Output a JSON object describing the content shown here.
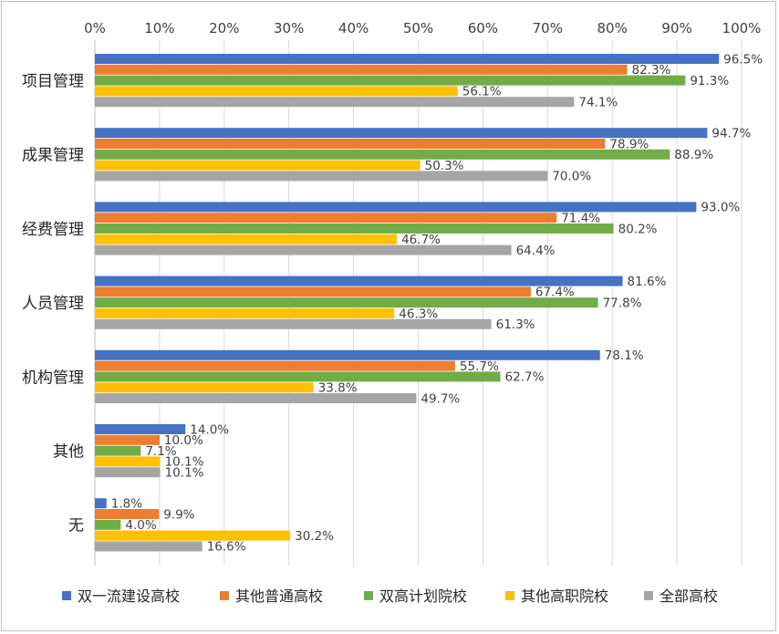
{
  "chart_data": {
    "type": "bar",
    "orientation": "horizontal",
    "categories": [
      "项目管理",
      "成果管理",
      "经费管理",
      "人员管理",
      "机构管理",
      "其他",
      "无"
    ],
    "series": [
      {
        "name": "双一流建设高校",
        "color": "#4472C4",
        "values": [
          96.5,
          94.7,
          93.0,
          81.6,
          78.1,
          14.0,
          1.8
        ],
        "labels": [
          "96.5%",
          "94.7%",
          "93.0%",
          "81.6%",
          "78.1%",
          "14.0%",
          "1.8%"
        ]
      },
      {
        "name": "其他普通高校",
        "color": "#ED7D31",
        "values": [
          82.3,
          78.9,
          71.4,
          67.4,
          55.7,
          10.0,
          9.9
        ],
        "labels": [
          "82.3%",
          "78.9%",
          "71.4%",
          "67.4%",
          "55.7%",
          "10.0%",
          "9.9%"
        ]
      },
      {
        "name": "双高计划院校",
        "color": "#70AD47",
        "values": [
          91.3,
          88.9,
          80.2,
          77.8,
          62.7,
          7.1,
          4.0
        ],
        "labels": [
          "91.3%",
          "88.9%",
          "80.2%",
          "77.8%",
          "62.7%",
          "7.1%",
          "4.0%"
        ]
      },
      {
        "name": "其他高职院校",
        "color": "#FFC000",
        "values": [
          56.1,
          50.3,
          46.7,
          46.3,
          33.8,
          10.1,
          30.2
        ],
        "labels": [
          "56.1%",
          "50.3%",
          "46.7%",
          "46.3%",
          "33.8%",
          "10.1%",
          "30.2%"
        ]
      },
      {
        "name": "全部高校",
        "color": "#A5A5A5",
        "values": [
          74.1,
          70.0,
          64.4,
          61.3,
          49.7,
          10.1,
          16.6
        ],
        "labels": [
          "74.1%",
          "70.0%",
          "64.4%",
          "61.3%",
          "49.7%",
          "10.1%",
          "16.6%"
        ]
      }
    ],
    "xlim": [
      0,
      100
    ],
    "x_ticks": [
      "0%",
      "10%",
      "20%",
      "30%",
      "40%",
      "50%",
      "60%",
      "70%",
      "80%",
      "90%",
      "100%"
    ],
    "x_axis_position": "top",
    "grid": true,
    "legend_position": "bottom"
  }
}
